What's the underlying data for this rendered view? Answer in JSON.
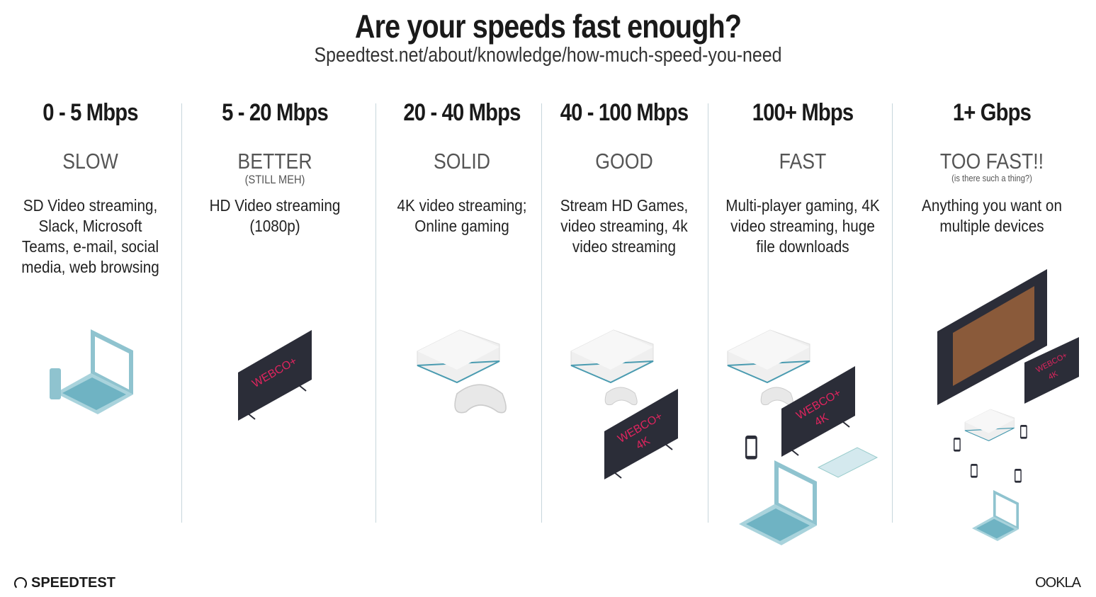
{
  "header": {
    "title": "Are your speeds fast enough?",
    "source": "Speedtest.net/about/knowledge/how-much-speed-you-need"
  },
  "tiers": [
    {
      "speed": "0 - 5 Mbps",
      "rating": "SLOW",
      "note": "",
      "description": "SD Video streaming, Slack, Microsoft Teams, e-mail, social media, web browsing",
      "devices": [
        "phone",
        "laptop"
      ]
    },
    {
      "speed": "5 - 20 Mbps",
      "rating": "BETTER",
      "note": "(STILL MEH)",
      "description": "HD Video streaming (1080p)",
      "devices": [
        "tv"
      ]
    },
    {
      "speed": "20 - 40 Mbps",
      "rating": "SOLID",
      "note": "",
      "description": "4K video streaming; Online gaming",
      "devices": [
        "game-console",
        "controller"
      ]
    },
    {
      "speed": "40 - 100 Mbps",
      "rating": "GOOD",
      "note": "",
      "description": "Stream HD Games, video streaming, 4k video streaming",
      "devices": [
        "game-console",
        "controller",
        "tv-4k"
      ]
    },
    {
      "speed": "100+ Mbps",
      "rating": "FAST",
      "note": "",
      "description": "Multi-player gaming, 4K video streaming, huge file downloads",
      "devices": [
        "game-console",
        "tv-4k",
        "phone",
        "laptop"
      ]
    },
    {
      "speed": "1+ Gbps",
      "rating": "TOO FAST!!",
      "note": "(is there such a thing?)",
      "description": "Anything you want on multiple devices",
      "devices": [
        "large-tv",
        "tv-4k",
        "game-console",
        "phones",
        "laptop"
      ]
    }
  ],
  "tv_brand": "WEBCO+",
  "tv_4k": "4K",
  "footer": {
    "left_logo": "SPEEDTEST",
    "right_logo": "OOKLA"
  },
  "colors": {
    "accent": "#e0245e",
    "device": "#8fc3cf",
    "tv": "#2b2d38"
  }
}
